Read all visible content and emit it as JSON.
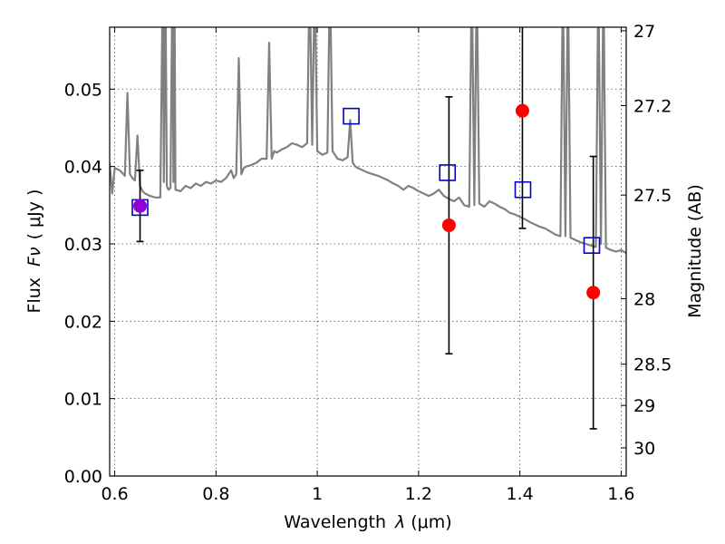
{
  "chart_data": {
    "type": "scatter",
    "xlabel_prefix": "Wavelength",
    "xlabel_symbol": "λ",
    "xlabel_unit": "(μm)",
    "ylabel_prefix": "Flux",
    "ylabel_symbol": "Fν",
    "ylabel_unit": "( μJy )",
    "y2label": "Magnitude (AB)",
    "xlim": [
      0.59,
      1.61
    ],
    "ylim": [
      0.0,
      0.058
    ],
    "x_ticks": [
      0.6,
      0.8,
      1.0,
      1.2,
      1.4,
      1.6
    ],
    "x_tick_labels": [
      "0.6",
      "0.8",
      "1",
      "1.2",
      "1.4",
      "1.6"
    ],
    "y_ticks": [
      0.0,
      0.01,
      0.02,
      0.03,
      0.04,
      0.05
    ],
    "y_tick_labels": [
      "0.00",
      "0.01",
      "0.02",
      "0.03",
      "0.04",
      "0.05"
    ],
    "y2_ticks": [
      27,
      27.2,
      27.5,
      28,
      28.5,
      29,
      30
    ],
    "y2_tick_labels": [
      "27",
      "27.2",
      "27.5",
      "28",
      "28.5",
      "29",
      "30"
    ],
    "grid": true,
    "colors": {
      "sed": "#808080",
      "observed": "#ff0000",
      "model": "#0000cc",
      "violet": "#9400d3",
      "errorbar": "#000000"
    },
    "sed_spectrum": {
      "x": [
        0.59,
        0.595,
        0.6,
        0.61,
        0.62,
        0.625,
        0.63,
        0.635,
        0.64,
        0.645,
        0.65,
        0.655,
        0.66,
        0.67,
        0.68,
        0.69,
        0.695,
        0.697,
        0.7,
        0.703,
        0.706,
        0.71,
        0.714,
        0.716,
        0.718,
        0.72,
        0.73,
        0.74,
        0.75,
        0.76,
        0.77,
        0.78,
        0.79,
        0.8,
        0.81,
        0.82,
        0.83,
        0.835,
        0.84,
        0.845,
        0.85,
        0.855,
        0.86,
        0.87,
        0.88,
        0.89,
        0.9,
        0.905,
        0.91,
        0.915,
        0.92,
        0.93,
        0.94,
        0.95,
        0.96,
        0.97,
        0.98,
        0.985,
        0.99,
        0.995,
        1.0,
        1.01,
        1.02,
        1.025,
        1.03,
        1.035,
        1.04,
        1.05,
        1.06,
        1.065,
        1.07,
        1.075,
        1.08,
        1.09,
        1.1,
        1.11,
        1.12,
        1.13,
        1.14,
        1.15,
        1.16,
        1.17,
        1.18,
        1.19,
        1.2,
        1.21,
        1.22,
        1.23,
        1.24,
        1.25,
        1.26,
        1.27,
        1.28,
        1.29,
        1.3,
        1.305,
        1.31,
        1.315,
        1.32,
        1.33,
        1.34,
        1.35,
        1.36,
        1.37,
        1.38,
        1.39,
        1.4,
        1.41,
        1.42,
        1.43,
        1.44,
        1.45,
        1.46,
        1.47,
        1.48,
        1.485,
        1.49,
        1.495,
        1.5,
        1.51,
        1.52,
        1.53,
        1.54,
        1.55,
        1.555,
        1.56,
        1.565,
        1.57,
        1.58,
        1.59,
        1.6,
        1.61
      ],
      "y": [
        0.0405,
        0.0365,
        0.0398,
        0.0395,
        0.0388,
        0.0495,
        0.039,
        0.0385,
        0.0382,
        0.044,
        0.0375,
        0.0368,
        0.0365,
        0.0362,
        0.036,
        0.036,
        0.065,
        0.038,
        0.065,
        0.0375,
        0.037,
        0.0372,
        0.065,
        0.038,
        0.065,
        0.037,
        0.0368,
        0.0375,
        0.0372,
        0.0378,
        0.0375,
        0.038,
        0.0378,
        0.0382,
        0.038,
        0.0385,
        0.0395,
        0.0385,
        0.039,
        0.054,
        0.039,
        0.0398,
        0.04,
        0.0402,
        0.0405,
        0.041,
        0.041,
        0.056,
        0.041,
        0.042,
        0.0418,
        0.0422,
        0.0425,
        0.043,
        0.0428,
        0.0425,
        0.043,
        0.065,
        0.0428,
        0.065,
        0.042,
        0.0415,
        0.0418,
        0.065,
        0.042,
        0.0415,
        0.041,
        0.0408,
        0.0412,
        0.046,
        0.0405,
        0.04,
        0.0398,
        0.0395,
        0.0392,
        0.039,
        0.0388,
        0.0385,
        0.0382,
        0.0378,
        0.0375,
        0.037,
        0.0375,
        0.0372,
        0.0368,
        0.0365,
        0.0362,
        0.0365,
        0.037,
        0.0362,
        0.0358,
        0.0355,
        0.036,
        0.035,
        0.0348,
        0.065,
        0.035,
        0.065,
        0.0352,
        0.0348,
        0.0355,
        0.0352,
        0.0348,
        0.0345,
        0.034,
        0.0338,
        0.0335,
        0.0332,
        0.0328,
        0.0325,
        0.0322,
        0.032,
        0.0316,
        0.0312,
        0.031,
        0.065,
        0.031,
        0.065,
        0.0308,
        0.0305,
        0.0302,
        0.03,
        0.0298,
        0.0296,
        0.065,
        0.03,
        0.065,
        0.0295,
        0.0292,
        0.029,
        0.0292,
        0.0288
      ]
    },
    "observed": [
      {
        "x": 0.65,
        "y": 0.0349,
        "err": 0.0046,
        "color": "violet"
      },
      {
        "x": 1.26,
        "y": 0.0324,
        "err": 0.0166,
        "color": "observed"
      },
      {
        "x": 1.405,
        "y": 0.0472,
        "err": 0.0152,
        "color": "observed"
      },
      {
        "x": 1.545,
        "y": 0.0237,
        "err": 0.0176,
        "color": "observed"
      }
    ],
    "model": [
      {
        "x": 0.65,
        "y": 0.0347
      },
      {
        "x": 1.067,
        "y": 0.0465
      },
      {
        "x": 1.257,
        "y": 0.0392
      },
      {
        "x": 1.406,
        "y": 0.037
      },
      {
        "x": 1.542,
        "y": 0.0298
      }
    ]
  }
}
